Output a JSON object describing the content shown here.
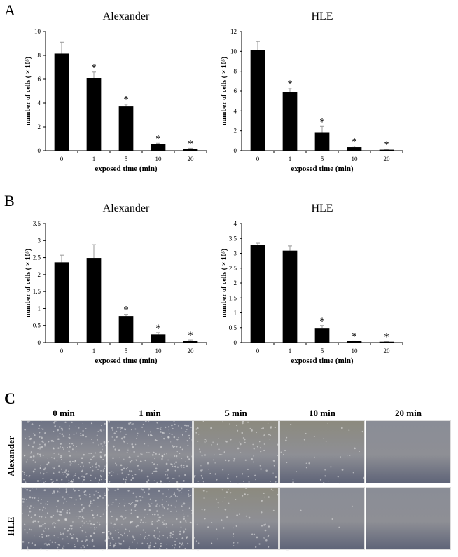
{
  "panels": {
    "A": {
      "letter": "A"
    },
    "B": {
      "letter": "B"
    },
    "C": {
      "letter": "C",
      "columns": [
        "0 min",
        "1 min",
        "5 min",
        "10 min",
        "20 min"
      ],
      "rows": [
        "Alexander",
        "HLE"
      ]
    }
  },
  "chart_data": [
    {
      "id": "A-Alexander",
      "type": "bar",
      "title": "Alexander",
      "xlabel": "exposed time (min)",
      "ylabel": "number of cells ( × 10⁵)",
      "categories": [
        "0",
        "1",
        "5",
        "10",
        "20"
      ],
      "values": [
        8.15,
        6.1,
        3.7,
        0.55,
        0.15
      ],
      "errors": [
        0.95,
        0.5,
        0.2,
        0.08,
        0.06
      ],
      "significant": [
        false,
        true,
        true,
        true,
        true
      ],
      "ylim": [
        0,
        10
      ],
      "yticks": [
        0,
        2,
        4,
        6,
        8,
        10
      ],
      "grid": false
    },
    {
      "id": "A-HLE",
      "type": "bar",
      "title": "HLE",
      "xlabel": "exposed time (min)",
      "ylabel": "number of cells ( × 10⁵)",
      "categories": [
        "0",
        "1",
        "5",
        "10",
        "20"
      ],
      "values": [
        10.1,
        5.9,
        1.8,
        0.35,
        0.1
      ],
      "errors": [
        0.9,
        0.4,
        0.65,
        0.1,
        0.04
      ],
      "significant": [
        false,
        true,
        true,
        true,
        true
      ],
      "ylim": [
        0,
        12
      ],
      "yticks": [
        0,
        2,
        4,
        6,
        8,
        10,
        12
      ],
      "grid": false
    },
    {
      "id": "B-Alexander",
      "type": "bar",
      "title": "Alexander",
      "xlabel": "exposed time (min)",
      "ylabel": "number of cells ( × 10⁵)",
      "categories": [
        "0",
        "1",
        "5",
        "10",
        "20"
      ],
      "values": [
        2.36,
        2.49,
        0.78,
        0.24,
        0.06
      ],
      "errors": [
        0.21,
        0.39,
        0.05,
        0.05,
        0.02
      ],
      "significant": [
        false,
        false,
        true,
        true,
        true
      ],
      "ylim": [
        0,
        3.5
      ],
      "yticks": [
        0,
        0.5,
        1,
        1.5,
        2,
        2.5,
        3,
        3.5
      ],
      "grid": false
    },
    {
      "id": "B-HLE",
      "type": "bar",
      "title": "HLE",
      "xlabel": "exposed time (min)",
      "ylabel": "number of cells ( × 10⁵)",
      "categories": [
        "0",
        "1",
        "5",
        "10",
        "20"
      ],
      "values": [
        3.29,
        3.09,
        0.49,
        0.05,
        0.03
      ],
      "errors": [
        0.05,
        0.16,
        0.08,
        0.01,
        0.01
      ],
      "significant": [
        false,
        false,
        true,
        true,
        true
      ],
      "ylim": [
        0,
        4
      ],
      "yticks": [
        0,
        0.5,
        1,
        1.5,
        2,
        2.5,
        3,
        3.5,
        4
      ],
      "grid": false
    }
  ],
  "colors": {
    "bar": "#000000",
    "error_bar": "#999999",
    "micro_dense": "#6e7385",
    "micro_sparse": "#8c8a7e",
    "micro_empty": "#8a8d96"
  }
}
